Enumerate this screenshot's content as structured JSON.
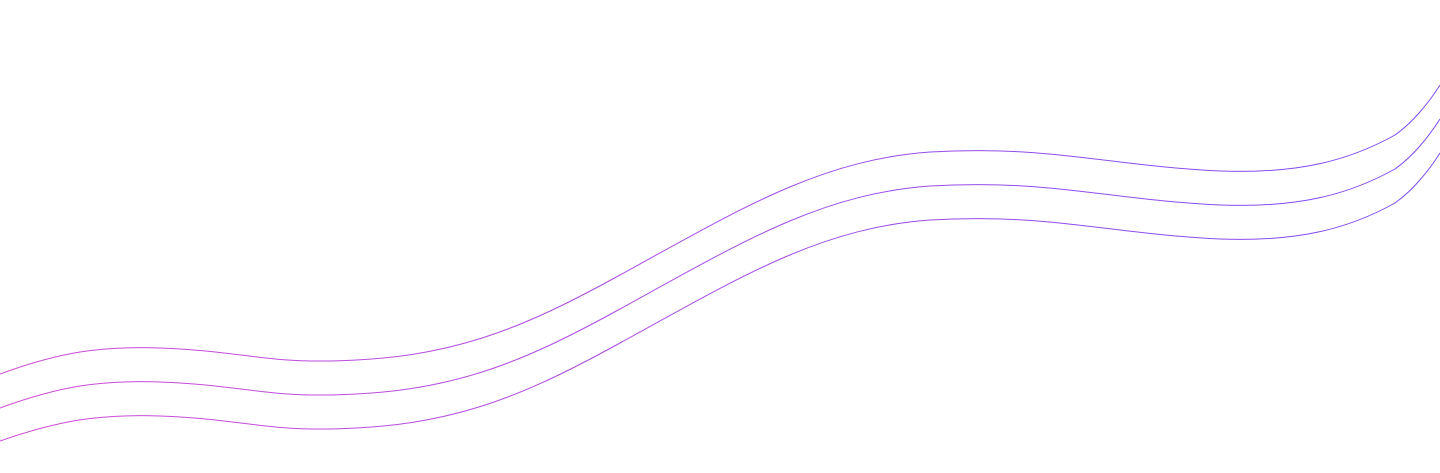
{
  "background_color": "#ffffff",
  "decoration": {
    "type": "wavy-lines",
    "line_count": 3,
    "gradient": {
      "start_color": "#d04bd6",
      "end_color": "#7b4df2"
    }
  }
}
